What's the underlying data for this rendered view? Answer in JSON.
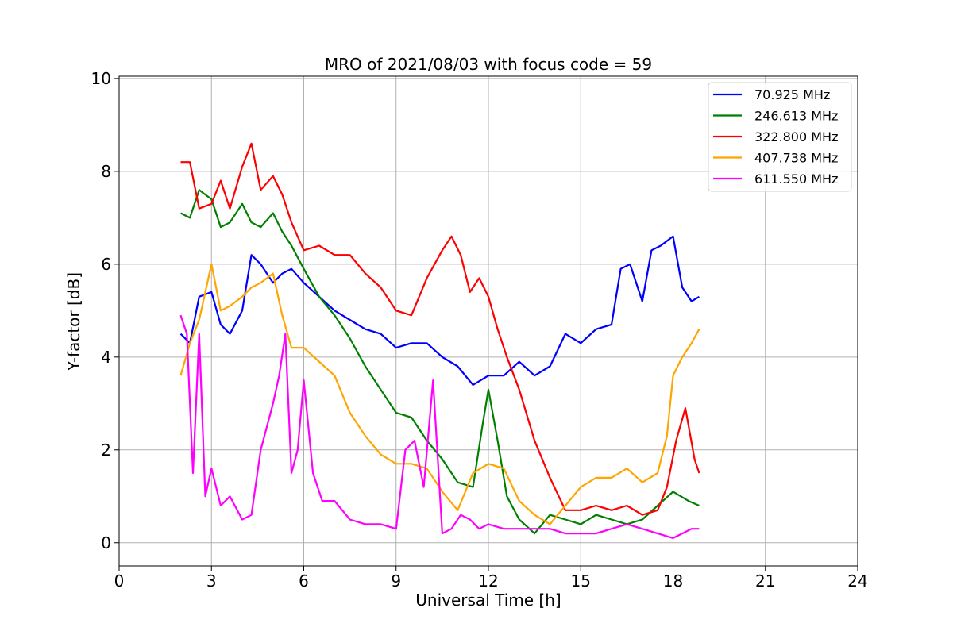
{
  "chart_data": {
    "type": "line",
    "title": "MRO of 2021/08/03 with focus code = 59",
    "xlabel": "Universal Time [h]",
    "ylabel": "Y-factor [dB]",
    "xlim": [
      0,
      24
    ],
    "ylim": [
      -0.5,
      10.05
    ],
    "xticks": [
      0,
      3,
      6,
      9,
      12,
      15,
      18,
      21,
      24
    ],
    "xtick_labels": [
      "0",
      "3",
      "6",
      "9",
      "12",
      "15",
      "18",
      "21",
      "24"
    ],
    "yticks": [
      0,
      2,
      4,
      6,
      8,
      10
    ],
    "ytick_labels": [
      "0",
      "2",
      "4",
      "6",
      "8",
      "10"
    ],
    "grid": true,
    "legend_position": "top-right",
    "series": [
      {
        "name": " 70.925 MHz",
        "color": "#0000ff",
        "x": [
          2.0,
          2.3,
          2.6,
          3.0,
          3.3,
          3.6,
          4.0,
          4.3,
          4.6,
          5.0,
          5.3,
          5.6,
          6.0,
          6.5,
          7.0,
          7.5,
          8.0,
          8.5,
          9.0,
          9.5,
          10.0,
          10.5,
          11.0,
          11.5,
          12.0,
          12.5,
          13.0,
          13.5,
          14.0,
          14.5,
          15.0,
          15.5,
          16.0,
          16.3,
          16.6,
          17.0,
          17.3,
          17.6,
          18.0,
          18.3,
          18.6,
          18.85
        ],
        "y": [
          4.5,
          4.3,
          5.3,
          5.4,
          4.7,
          4.5,
          5.0,
          6.2,
          6.0,
          5.6,
          5.8,
          5.9,
          5.6,
          5.3,
          5.0,
          4.8,
          4.6,
          4.5,
          4.2,
          4.3,
          4.3,
          4.0,
          3.8,
          3.4,
          3.6,
          3.6,
          3.9,
          3.6,
          3.8,
          4.5,
          4.3,
          4.6,
          4.7,
          5.9,
          6.0,
          5.2,
          6.3,
          6.4,
          6.6,
          5.5,
          5.2,
          5.3
        ]
      },
      {
        "name": "246.613 MHz",
        "color": "#008000",
        "x": [
          2.0,
          2.3,
          2.6,
          3.0,
          3.3,
          3.6,
          4.0,
          4.3,
          4.6,
          5.0,
          5.3,
          5.6,
          6.0,
          6.5,
          7.0,
          7.5,
          8.0,
          8.5,
          9.0,
          9.5,
          10.0,
          10.5,
          11.0,
          11.5,
          11.8,
          12.0,
          12.3,
          12.6,
          13.0,
          13.5,
          14.0,
          14.5,
          15.0,
          15.5,
          16.0,
          16.5,
          17.0,
          17.5,
          18.0,
          18.5,
          18.85
        ],
        "y": [
          7.1,
          7.0,
          7.6,
          7.4,
          6.8,
          6.9,
          7.3,
          6.9,
          6.8,
          7.1,
          6.7,
          6.4,
          5.9,
          5.3,
          4.9,
          4.4,
          3.8,
          3.3,
          2.8,
          2.7,
          2.2,
          1.8,
          1.3,
          1.2,
          2.5,
          3.3,
          2.2,
          1.0,
          0.5,
          0.2,
          0.6,
          0.5,
          0.4,
          0.6,
          0.5,
          0.4,
          0.5,
          0.8,
          1.1,
          0.9,
          0.8
        ]
      },
      {
        "name": "322.800 MHz",
        "color": "#ff0000",
        "x": [
          2.0,
          2.3,
          2.6,
          3.0,
          3.3,
          3.6,
          4.0,
          4.3,
          4.6,
          5.0,
          5.3,
          5.6,
          6.0,
          6.5,
          7.0,
          7.5,
          8.0,
          8.5,
          9.0,
          9.5,
          10.0,
          10.5,
          10.8,
          11.1,
          11.4,
          11.7,
          12.0,
          12.3,
          12.6,
          13.0,
          13.5,
          14.0,
          14.5,
          15.0,
          15.5,
          16.0,
          16.5,
          17.0,
          17.5,
          17.8,
          18.1,
          18.4,
          18.7,
          18.85
        ],
        "y": [
          8.2,
          8.2,
          7.2,
          7.3,
          7.8,
          7.2,
          8.1,
          8.6,
          7.6,
          7.9,
          7.5,
          6.9,
          6.3,
          6.4,
          6.2,
          6.2,
          5.8,
          5.5,
          5.0,
          4.9,
          5.7,
          6.3,
          6.6,
          6.2,
          5.4,
          5.7,
          5.3,
          4.6,
          4.0,
          3.3,
          2.2,
          1.4,
          0.7,
          0.7,
          0.8,
          0.7,
          0.8,
          0.6,
          0.7,
          1.2,
          2.2,
          2.9,
          1.8,
          1.5
        ]
      },
      {
        "name": "407.738 MHz",
        "color": "#ffa500",
        "x": [
          2.0,
          2.3,
          2.6,
          3.0,
          3.3,
          3.6,
          4.0,
          4.3,
          4.6,
          5.0,
          5.3,
          5.6,
          6.0,
          6.5,
          7.0,
          7.5,
          8.0,
          8.5,
          9.0,
          9.5,
          10.0,
          10.5,
          11.0,
          11.5,
          12.0,
          12.5,
          13.0,
          13.5,
          14.0,
          14.5,
          15.0,
          15.5,
          16.0,
          16.5,
          17.0,
          17.5,
          17.8,
          18.0,
          18.3,
          18.6,
          18.85
        ],
        "y": [
          3.6,
          4.3,
          4.8,
          6.0,
          5.0,
          5.1,
          5.3,
          5.5,
          5.6,
          5.8,
          4.9,
          4.2,
          4.2,
          3.9,
          3.6,
          2.8,
          2.3,
          1.9,
          1.7,
          1.7,
          1.6,
          1.1,
          0.7,
          1.5,
          1.7,
          1.6,
          0.9,
          0.6,
          0.4,
          0.8,
          1.2,
          1.4,
          1.4,
          1.6,
          1.3,
          1.5,
          2.3,
          3.6,
          4.0,
          4.3,
          4.6
        ]
      },
      {
        "name": "611.550 MHz",
        "color": "#ff00ff",
        "x": [
          2.0,
          2.2,
          2.4,
          2.6,
          2.8,
          3.0,
          3.3,
          3.6,
          4.0,
          4.3,
          4.6,
          5.0,
          5.2,
          5.4,
          5.6,
          5.8,
          6.0,
          6.3,
          6.6,
          7.0,
          7.5,
          8.0,
          8.5,
          9.0,
          9.3,
          9.6,
          9.9,
          10.2,
          10.5,
          10.8,
          11.1,
          11.4,
          11.7,
          12.0,
          12.5,
          13.0,
          13.5,
          14.0,
          14.5,
          15.0,
          15.5,
          16.0,
          16.5,
          17.0,
          17.5,
          18.0,
          18.3,
          18.6,
          18.85
        ],
        "y": [
          4.9,
          4.5,
          1.5,
          4.5,
          1.0,
          1.6,
          0.8,
          1.0,
          0.5,
          0.6,
          2.0,
          3.0,
          3.6,
          4.5,
          1.5,
          2.0,
          3.5,
          1.5,
          0.9,
          0.9,
          0.5,
          0.4,
          0.4,
          0.3,
          2.0,
          2.2,
          1.2,
          3.5,
          0.2,
          0.3,
          0.6,
          0.5,
          0.3,
          0.4,
          0.3,
          0.3,
          0.3,
          0.3,
          0.2,
          0.2,
          0.2,
          0.3,
          0.4,
          0.3,
          0.2,
          0.1,
          0.2,
          0.3,
          0.3
        ]
      }
    ]
  }
}
